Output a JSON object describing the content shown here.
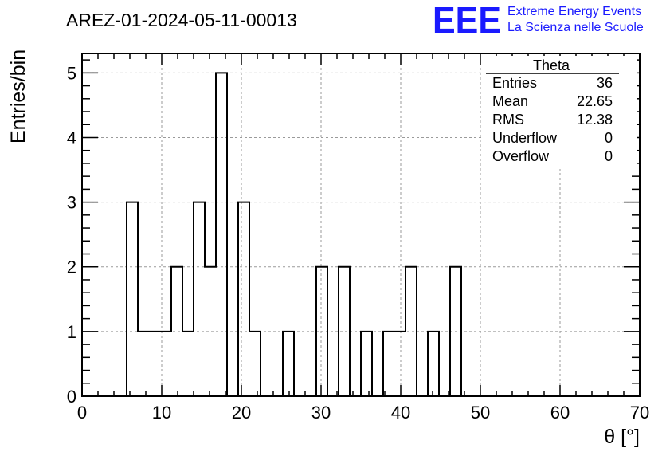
{
  "logo": {
    "mark": "EEE",
    "line1": "Extreme Energy Events",
    "line2": "La Scienza nelle Scuole",
    "color": "#1a1aff"
  },
  "chart_data": {
    "type": "bar",
    "title": "AREZ-01-2024-05-11-00013",
    "xlabel": "θ [°]",
    "ylabel": "Entries/bin",
    "xlim": [
      0,
      70
    ],
    "ylim": [
      0,
      5.3
    ],
    "xticks": [
      0,
      10,
      20,
      30,
      40,
      50,
      60,
      70
    ],
    "yticks": [
      0,
      1,
      2,
      3,
      4,
      5
    ],
    "grid": true,
    "bin_width": 1.4,
    "series": [
      {
        "name": "Theta",
        "bin_edges_start": [
          5.6,
          7.0,
          8.4,
          9.8,
          11.2,
          12.6,
          14.0,
          15.4,
          16.8,
          18.2,
          19.6,
          21.0,
          22.4,
          23.8,
          25.2,
          26.6,
          28.0,
          29.4,
          30.8,
          32.2,
          33.6,
          35.0,
          36.4,
          37.8,
          39.2,
          40.6,
          42.0,
          43.4,
          44.8,
          46.2,
          47.6
        ],
        "values": [
          3,
          1,
          1,
          1,
          2,
          1,
          3,
          2,
          5,
          0,
          3,
          1,
          0,
          0,
          1,
          0,
          0,
          2,
          0,
          2,
          0,
          1,
          0,
          1,
          1,
          2,
          0,
          1,
          0,
          2,
          0
        ]
      }
    ],
    "stats_box": {
      "title": "Theta",
      "position": "top-right",
      "rows": [
        {
          "label": "Entries",
          "value": "36"
        },
        {
          "label": "Mean",
          "value": "22.65"
        },
        {
          "label": "RMS",
          "value": "12.38"
        },
        {
          "label": "Underflow",
          "value": "0"
        },
        {
          "label": "Overflow",
          "value": "0"
        }
      ]
    }
  }
}
